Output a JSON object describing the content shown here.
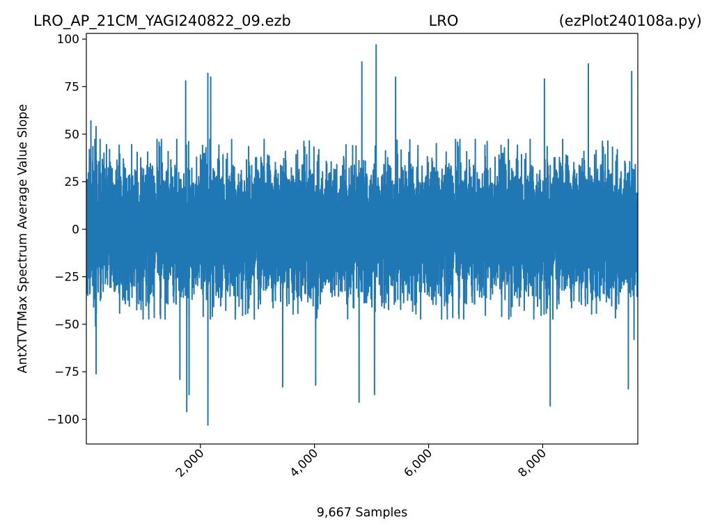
{
  "chart_data": {
    "type": "line",
    "title_parts": [
      "LRO_AP_21CM_YAGI240822_09.ezb",
      "LRO",
      "(ezPlot240108a.py)"
    ],
    "xlabel": "9,667 Samples",
    "ylabel": "AntXTVTMax Spectrum Average Value Slope",
    "xlim": [
      0,
      9667
    ],
    "ylim": [
      -113,
      103
    ],
    "x_ticks": [
      2000,
      4000,
      6000,
      8000
    ],
    "x_tick_labels": [
      "2,000",
      "4,000",
      "6,000",
      "8,000"
    ],
    "y_ticks": [
      100,
      75,
      50,
      25,
      0,
      -25,
      -50,
      -75,
      -100
    ],
    "y_tick_labels": [
      "100",
      "75",
      "50",
      "25",
      "0",
      "−25",
      "−50",
      "−75",
      "−100"
    ],
    "grid": false,
    "series": [
      {
        "color": "#1f77b4",
        "sample_count": 9667,
        "typical_range": [
          -45,
          45
        ],
        "peaks": [
          {
            "x": 80,
            "y": 57
          },
          {
            "x": 160,
            "y": -51
          },
          {
            "x": 170,
            "y": 54
          },
          {
            "x": 170,
            "y": -76
          },
          {
            "x": 1640,
            "y": -79
          },
          {
            "x": 1740,
            "y": 78
          },
          {
            "x": 1760,
            "y": -96
          },
          {
            "x": 1800,
            "y": -87
          },
          {
            "x": 2130,
            "y": 82
          },
          {
            "x": 2130,
            "y": -103
          },
          {
            "x": 2180,
            "y": 80
          },
          {
            "x": 3440,
            "y": -83
          },
          {
            "x": 4020,
            "y": -82
          },
          {
            "x": 4780,
            "y": -91
          },
          {
            "x": 4830,
            "y": 88
          },
          {
            "x": 5050,
            "y": -87
          },
          {
            "x": 5080,
            "y": 97
          },
          {
            "x": 5420,
            "y": 80
          },
          {
            "x": 8030,
            "y": 79
          },
          {
            "x": 8130,
            "y": -93
          },
          {
            "x": 8800,
            "y": 87
          },
          {
            "x": 9500,
            "y": -84
          },
          {
            "x": 9560,
            "y": 83
          },
          {
            "x": 9600,
            "y": -58
          }
        ]
      }
    ]
  }
}
